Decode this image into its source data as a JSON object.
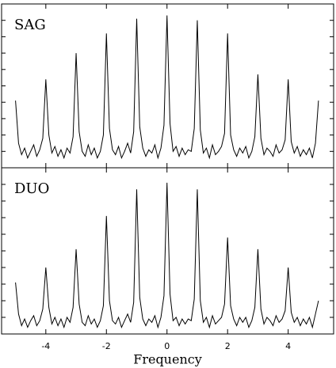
{
  "chart_data": [
    {
      "type": "line",
      "grid": false,
      "x": [
        -5,
        -4.9,
        -4.8,
        -4.7,
        -4.6,
        -4.5,
        -4.4,
        -4.3,
        -4.2,
        -4.1,
        -4,
        -3.9,
        -3.8,
        -3.7,
        -3.6,
        -3.5,
        -3.4,
        -3.3,
        -3.2,
        -3.1,
        -3,
        -2.9,
        -2.8,
        -2.7,
        -2.6,
        -2.5,
        -2.4,
        -2.3,
        -2.2,
        -2.1,
        -2,
        -1.9,
        -1.8,
        -1.7,
        -1.6,
        -1.5,
        -1.4,
        -1.3,
        -1.2,
        -1.1,
        -1,
        -0.9,
        -0.8,
        -0.7,
        -0.6,
        -0.5,
        -0.4,
        -0.3,
        -0.2,
        -0.1,
        0,
        0.1,
        0.2,
        0.3,
        0.4,
        0.5,
        0.6,
        0.7,
        0.8,
        0.9,
        1,
        1.1,
        1.2,
        1.3,
        1.4,
        1.5,
        1.6,
        1.7,
        1.8,
        1.9,
        2,
        2.1,
        2.2,
        2.3,
        2.4,
        2.5,
        2.6,
        2.7,
        2.8,
        2.9,
        3,
        3.1,
        3.2,
        3.3,
        3.4,
        3.5,
        3.6,
        3.7,
        3.8,
        3.9,
        4,
        4.1,
        4.2,
        4.3,
        4.4,
        4.5,
        4.6,
        4.7,
        4.8,
        4.9,
        5
      ],
      "series": [
        {
          "name": "SAG",
          "color": "#000000",
          "values": [
            0.41,
            0.15,
            0.08,
            0.12,
            0.06,
            0.1,
            0.14,
            0.07,
            0.11,
            0.18,
            0.54,
            0.2,
            0.09,
            0.13,
            0.07,
            0.11,
            0.06,
            0.12,
            0.09,
            0.19,
            0.7,
            0.22,
            0.1,
            0.07,
            0.14,
            0.08,
            0.12,
            0.06,
            0.1,
            0.2,
            0.82,
            0.24,
            0.11,
            0.08,
            0.13,
            0.06,
            0.1,
            0.15,
            0.09,
            0.22,
            0.91,
            0.25,
            0.12,
            0.07,
            0.11,
            0.09,
            0.14,
            0.06,
            0.12,
            0.26,
            0.93,
            0.27,
            0.1,
            0.13,
            0.07,
            0.12,
            0.08,
            0.11,
            0.1,
            0.24,
            0.9,
            0.23,
            0.09,
            0.12,
            0.06,
            0.14,
            0.08,
            0.1,
            0.13,
            0.21,
            0.82,
            0.2,
            0.11,
            0.07,
            0.12,
            0.09,
            0.13,
            0.06,
            0.1,
            0.19,
            0.57,
            0.18,
            0.08,
            0.12,
            0.1,
            0.07,
            0.14,
            0.09,
            0.11,
            0.17,
            0.54,
            0.16,
            0.09,
            0.13,
            0.07,
            0.11,
            0.08,
            0.12,
            0.06,
            0.15,
            0.41
          ]
        }
      ],
      "xlim": [
        -5.46,
        5.5
      ],
      "ylim": [
        0,
        1
      ],
      "yticks": [
        0.1,
        0.2,
        0.3,
        0.4,
        0.5,
        0.6,
        0.7,
        0.8,
        0.9
      ]
    },
    {
      "type": "line",
      "grid": false,
      "xlabel": "Frequency",
      "x": [
        -5,
        -4.9,
        -4.8,
        -4.7,
        -4.6,
        -4.5,
        -4.4,
        -4.3,
        -4.2,
        -4.1,
        -4,
        -3.9,
        -3.8,
        -3.7,
        -3.6,
        -3.5,
        -3.4,
        -3.3,
        -3.2,
        -3.1,
        -3,
        -2.9,
        -2.8,
        -2.7,
        -2.6,
        -2.5,
        -2.4,
        -2.3,
        -2.2,
        -2.1,
        -2,
        -1.9,
        -1.8,
        -1.7,
        -1.6,
        -1.5,
        -1.4,
        -1.3,
        -1.2,
        -1.1,
        -1,
        -0.9,
        -0.8,
        -0.7,
        -0.6,
        -0.5,
        -0.4,
        -0.3,
        -0.2,
        -0.1,
        0,
        0.1,
        0.2,
        0.3,
        0.4,
        0.5,
        0.6,
        0.7,
        0.8,
        0.9,
        1,
        1.1,
        1.2,
        1.3,
        1.4,
        1.5,
        1.6,
        1.7,
        1.8,
        1.9,
        2,
        2.1,
        2.2,
        2.3,
        2.4,
        2.5,
        2.6,
        2.7,
        2.8,
        2.9,
        3,
        3.1,
        3.2,
        3.3,
        3.4,
        3.5,
        3.6,
        3.7,
        3.8,
        3.9,
        4,
        4.1,
        4.2,
        4.3,
        4.4,
        4.5,
        4.6,
        4.7,
        4.8,
        4.9,
        5
      ],
      "series": [
        {
          "name": "DUO",
          "color": "#000000",
          "values": [
            0.31,
            0.12,
            0.05,
            0.09,
            0.04,
            0.08,
            0.11,
            0.05,
            0.08,
            0.15,
            0.4,
            0.16,
            0.06,
            0.1,
            0.05,
            0.09,
            0.04,
            0.1,
            0.07,
            0.16,
            0.51,
            0.18,
            0.07,
            0.05,
            0.11,
            0.06,
            0.09,
            0.04,
            0.08,
            0.17,
            0.71,
            0.2,
            0.08,
            0.06,
            0.1,
            0.04,
            0.08,
            0.12,
            0.07,
            0.19,
            0.87,
            0.22,
            0.09,
            0.05,
            0.09,
            0.07,
            0.11,
            0.04,
            0.1,
            0.23,
            0.91,
            0.24,
            0.08,
            0.1,
            0.05,
            0.09,
            0.06,
            0.09,
            0.08,
            0.21,
            0.87,
            0.2,
            0.07,
            0.1,
            0.04,
            0.11,
            0.06,
            0.08,
            0.1,
            0.18,
            0.58,
            0.17,
            0.09,
            0.05,
            0.1,
            0.07,
            0.1,
            0.04,
            0.08,
            0.16,
            0.51,
            0.15,
            0.06,
            0.1,
            0.08,
            0.05,
            0.11,
            0.07,
            0.09,
            0.14,
            0.4,
            0.13,
            0.07,
            0.1,
            0.05,
            0.09,
            0.06,
            0.1,
            0.04,
            0.12,
            0.2
          ]
        }
      ],
      "xlim": [
        -5.46,
        5.5
      ],
      "ylim": [
        0,
        1
      ],
      "xticks": [
        -4,
        -2,
        0,
        2,
        4
      ],
      "yticks": [
        0.1,
        0.2,
        0.3,
        0.4,
        0.5,
        0.6,
        0.7,
        0.8,
        0.9
      ]
    }
  ]
}
